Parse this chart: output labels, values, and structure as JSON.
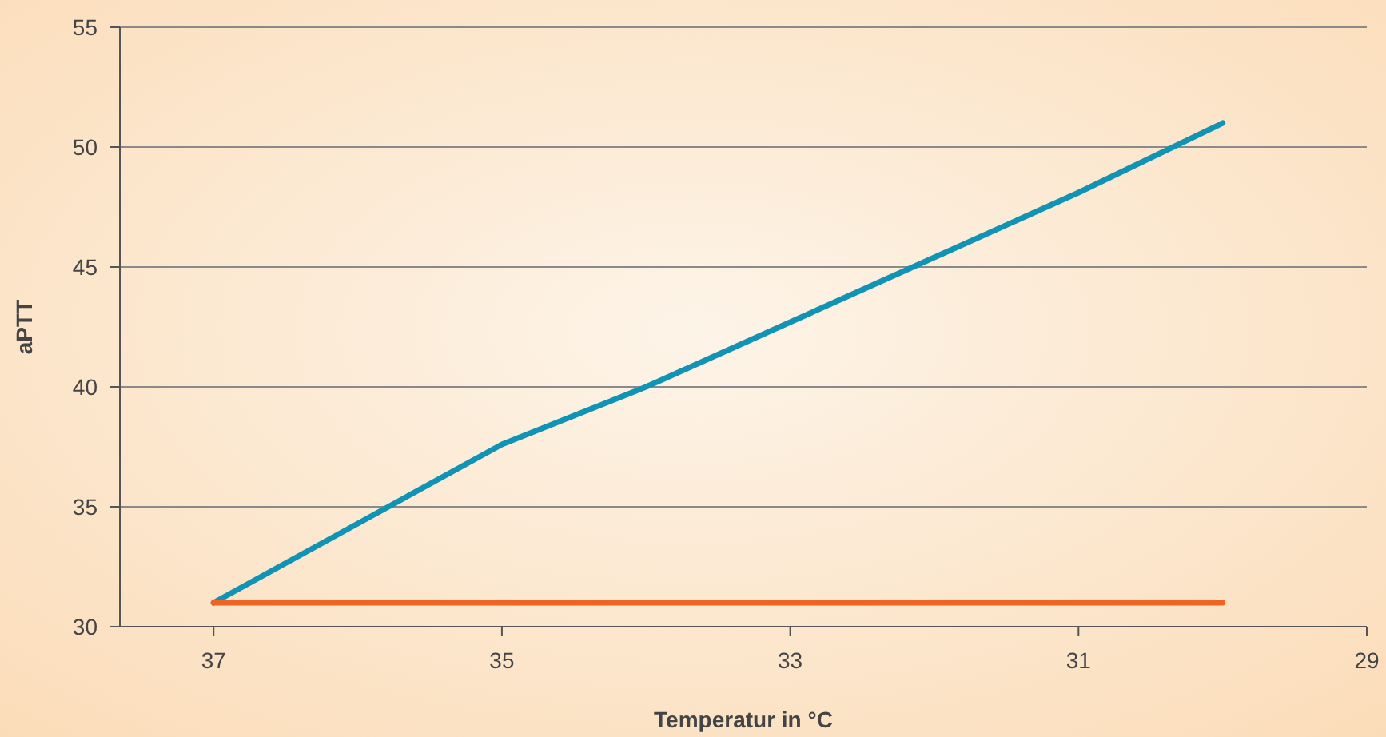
{
  "chart_data": {
    "type": "line",
    "xlabel": "Temperatur in °C",
    "ylabel": "aPTT",
    "x": [
      37,
      36,
      35,
      34,
      33,
      32,
      31,
      30
    ],
    "series": [
      {
        "color": "#1193b5",
        "values": [
          31,
          34.3,
          37.6,
          40,
          42.7,
          45.4,
          48.1,
          51
        ]
      },
      {
        "color": "#f06423",
        "values": [
          31,
          31,
          31,
          31,
          31,
          31,
          31,
          31
        ]
      }
    ],
    "xlim": [
      37.65,
      29
    ],
    "xticks": [
      37,
      35,
      33,
      31,
      29
    ],
    "ylim": [
      30,
      55
    ],
    "yticks": [
      30,
      35,
      40,
      45,
      50,
      55
    ],
    "grid": "y",
    "marker": "none",
    "line_style": "solid"
  }
}
